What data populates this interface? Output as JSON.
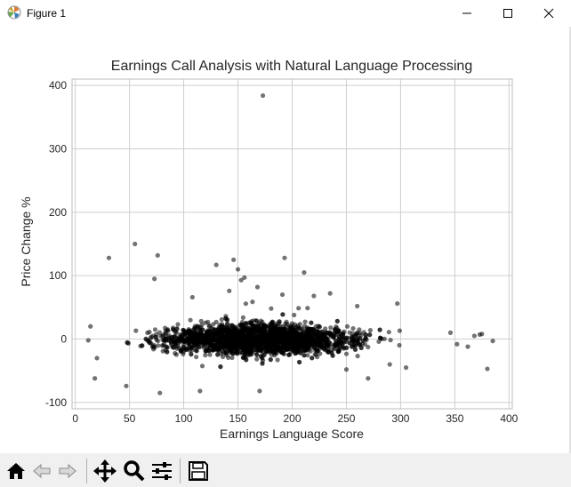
{
  "window": {
    "title": "Figure 1",
    "icons": [
      "matplotlib-icon",
      "minimize-icon",
      "maximize-icon",
      "close-icon"
    ]
  },
  "toolbar": {
    "buttons": [
      "home-icon",
      "back-icon",
      "forward-icon",
      "pan-icon",
      "zoom-icon",
      "configure-subplots-icon",
      "save-icon"
    ]
  },
  "chart_data": {
    "type": "scatter",
    "title": "Earnings Call Analysis with Natural Language Processing",
    "xlabel": "Earnings Language Score",
    "ylabel": "Price Change %",
    "xlim": [
      -3,
      403
    ],
    "ylim": [
      -110,
      410
    ],
    "xticks": [
      0,
      50,
      100,
      150,
      200,
      250,
      300,
      350,
      400
    ],
    "yticks": [
      -100,
      0,
      100,
      200,
      300,
      400
    ],
    "grid": true,
    "marker_color": "#000000",
    "marker_alpha": 0.55,
    "outliers": [
      {
        "x": 173,
        "y": 384
      },
      {
        "x": 55,
        "y": 150
      },
      {
        "x": 31,
        "y": 128
      },
      {
        "x": 76,
        "y": 132
      },
      {
        "x": 193,
        "y": 128
      },
      {
        "x": 146,
        "y": 125
      },
      {
        "x": 130,
        "y": 117
      },
      {
        "x": 150,
        "y": 110
      },
      {
        "x": 211,
        "y": 105
      },
      {
        "x": 73,
        "y": 95
      },
      {
        "x": 156,
        "y": 97
      },
      {
        "x": 153,
        "y": 93
      },
      {
        "x": 108,
        "y": 66
      },
      {
        "x": 142,
        "y": 76
      },
      {
        "x": 168,
        "y": 82
      },
      {
        "x": 191,
        "y": 70
      },
      {
        "x": 235,
        "y": 72
      },
      {
        "x": 297,
        "y": 56
      },
      {
        "x": 220,
        "y": 68
      },
      {
        "x": 260,
        "y": 52
      },
      {
        "x": 380,
        "y": -47
      },
      {
        "x": 352,
        "y": -8
      },
      {
        "x": 362,
        "y": -12
      },
      {
        "x": 385,
        "y": -3
      },
      {
        "x": 368,
        "y": 5
      },
      {
        "x": 373,
        "y": 7
      },
      {
        "x": 375,
        "y": 8
      },
      {
        "x": 346,
        "y": 10
      },
      {
        "x": 18,
        "y": -62
      },
      {
        "x": 14,
        "y": 20
      },
      {
        "x": 12,
        "y": -2
      },
      {
        "x": 20,
        "y": -30
      },
      {
        "x": 47,
        "y": -74
      },
      {
        "x": 78,
        "y": -85
      },
      {
        "x": 305,
        "y": -45
      },
      {
        "x": 290,
        "y": -40
      },
      {
        "x": 270,
        "y": -62
      },
      {
        "x": 250,
        "y": -48
      },
      {
        "x": 115,
        "y": -82
      },
      {
        "x": 170,
        "y": -82
      }
    ],
    "cluster": {
      "n": 2600,
      "x_range": [
        12,
        385
      ],
      "y_sigma_at_center": 18,
      "y_sigma_at_edge": 6,
      "peak_x": 170
    }
  }
}
